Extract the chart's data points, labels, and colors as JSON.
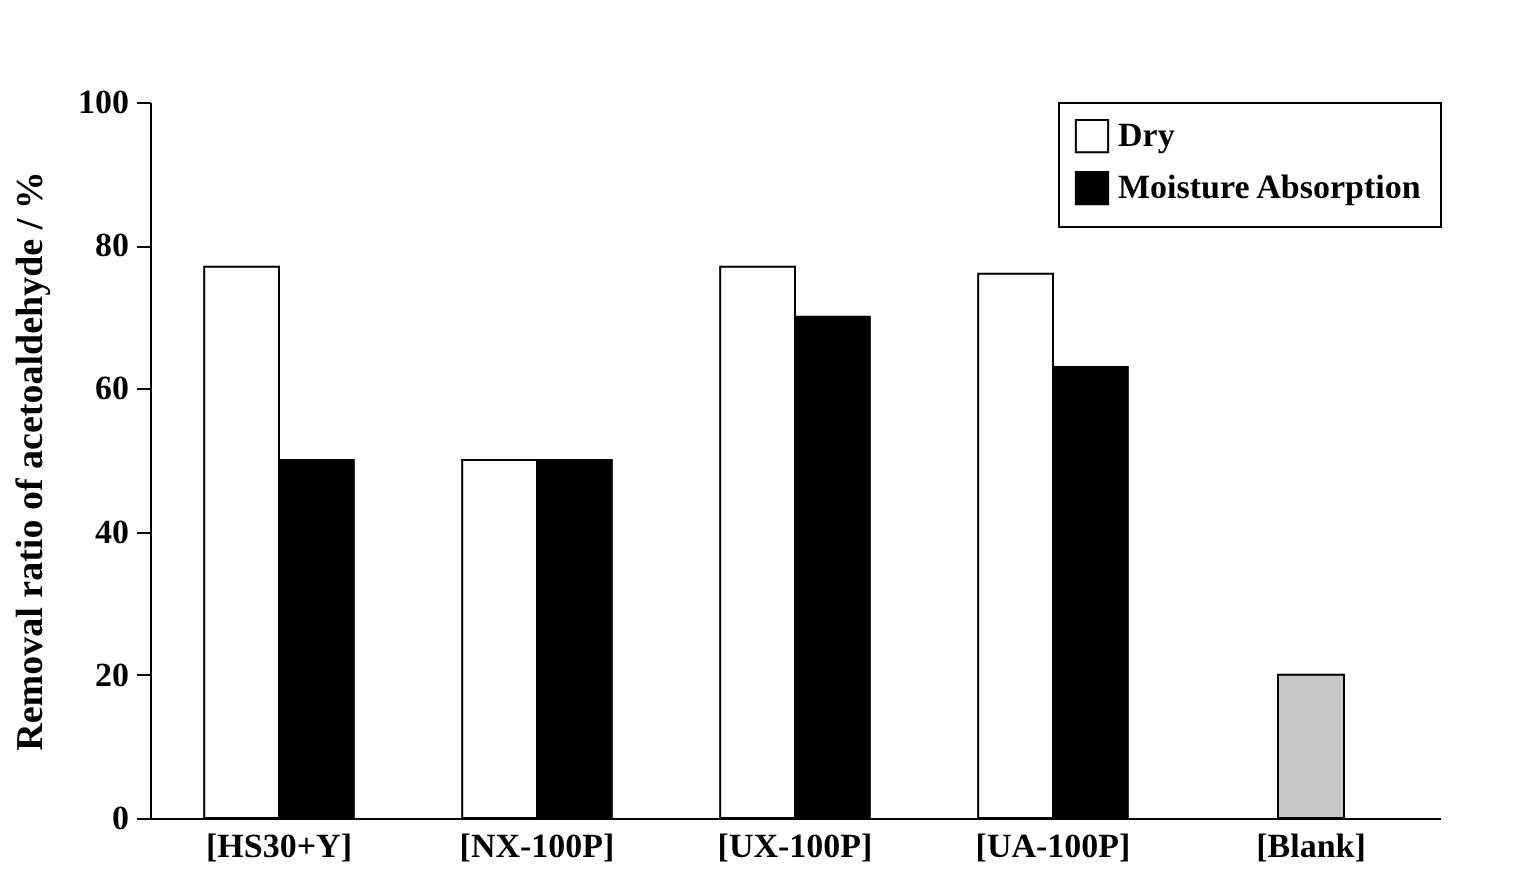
{
  "chart_data": {
    "type": "bar",
    "ylabel": "Removal ratio of acetoaldehyde / %",
    "categories": [
      "[HS30+Y]",
      "[NX-100P]",
      "[UX-100P]",
      "[UA-100P]",
      "[Blank]"
    ],
    "series": [
      {
        "name": "Dry",
        "color": "#ffffff",
        "values": [
          77,
          50,
          77,
          76,
          null
        ]
      },
      {
        "name": "Moisture Absorption",
        "color": "#000000",
        "values": [
          50,
          50,
          70,
          63,
          null
        ]
      },
      {
        "color": "#c8c8c8",
        "values": [
          null,
          null,
          null,
          null,
          20
        ]
      }
    ],
    "ylim": [
      0,
      100
    ],
    "yticks": [
      0,
      20,
      40,
      60,
      80,
      100
    ],
    "grid": false,
    "legend": "top right"
  }
}
